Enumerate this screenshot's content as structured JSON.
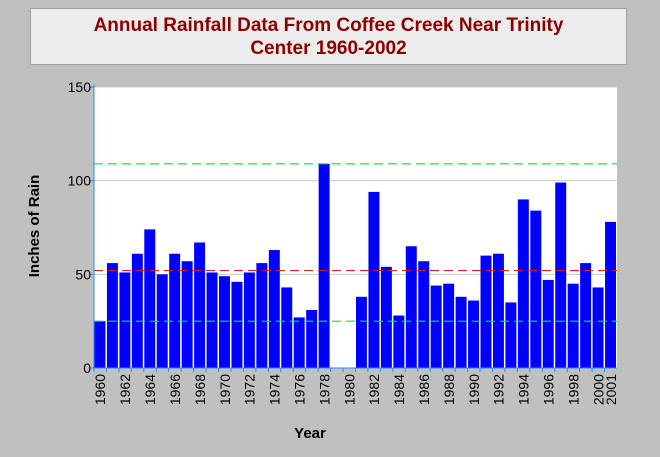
{
  "chart_data": {
    "type": "bar",
    "title_line1": "Annual Rainfall Data From Coffee Creek Near Trinity",
    "title_line2": "Center  1960-2002",
    "xlabel": "Year",
    "ylabel": "Inches of Rain",
    "ylim": [
      0,
      150
    ],
    "yticks": [
      0,
      50,
      100,
      150
    ],
    "grid": true,
    "bar_color": "#0000ff",
    "reference_lines": [
      {
        "value": 109,
        "color": "#2ecc40"
      },
      {
        "value": 52,
        "color": "#d02020"
      },
      {
        "value": 25,
        "color": "#2ecc40"
      }
    ],
    "categories": [
      "1960",
      "1961",
      "1962",
      "1963",
      "1964",
      "1965",
      "1966",
      "1967",
      "1968",
      "1969",
      "1970",
      "1971",
      "1972",
      "1973",
      "1974",
      "1975",
      "1976",
      "1977",
      "1978",
      "1979",
      "1980",
      "1981",
      "1982",
      "1983",
      "1984",
      "1985",
      "1986",
      "1987",
      "1988",
      "1989",
      "1990",
      "1991",
      "1992",
      "1993",
      "1994",
      "1995",
      "1996",
      "1997",
      "1998",
      "1999",
      "2000",
      "2001"
    ],
    "tick_labels": [
      "1960",
      "1962",
      "1964",
      "1966",
      "1968",
      "1970",
      "1972",
      "1974",
      "1976",
      "1978",
      "1980",
      "1982",
      "1984",
      "1986",
      "1988",
      "1990",
      "1992",
      "1994",
      "1996",
      "1998",
      "2000",
      "2001"
    ],
    "values": [
      25,
      56,
      51,
      61,
      74,
      50,
      61,
      57,
      67,
      51,
      49,
      46,
      51,
      56,
      63,
      43,
      27,
      31,
      109,
      0,
      0,
      38,
      94,
      54,
      28,
      65,
      57,
      44,
      45,
      38,
      36,
      60,
      61,
      35,
      90,
      84,
      47,
      99,
      45,
      56,
      43,
      78
    ]
  }
}
